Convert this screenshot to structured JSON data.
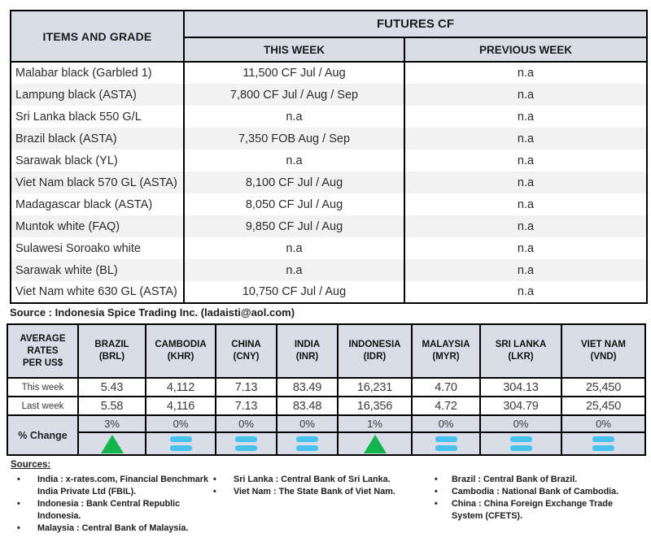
{
  "futures_table": {
    "col1_header": "ITEMS AND GRADE",
    "group_header": "FUTURES CF",
    "subheaders": [
      "THIS WEEK",
      "PREVIOUS WEEK"
    ],
    "rows": [
      {
        "item": "Malabar black (Garbled 1)",
        "this_week": "11,500 CF Jul / Aug",
        "previous_week": "n.a"
      },
      {
        "item": "Lampung black (ASTA)",
        "this_week": "7,800 CF Jul / Aug / Sep",
        "previous_week": "n.a"
      },
      {
        "item": "Sri Lanka black 550 G/L",
        "this_week": "n.a",
        "previous_week": "n.a"
      },
      {
        "item": "Brazil black (ASTA)",
        "this_week": "7,350 FOB Aug / Sep",
        "previous_week": "n.a"
      },
      {
        "item": "Sarawak black (YL)",
        "this_week": "n.a",
        "previous_week": "n.a"
      },
      {
        "item": "Viet Nam black 570 GL (ASTA)",
        "this_week": "8,100 CF Jul / Aug",
        "previous_week": "n.a"
      },
      {
        "item": "Madagascar black (ASTA)",
        "this_week": "8,050 CF Jul / Aug",
        "previous_week": "n.a"
      },
      {
        "item": "Muntok white (FAQ)",
        "this_week": "9,850 CF Jul / Aug",
        "previous_week": "n.a"
      },
      {
        "item": "Sulawesi Soroako white",
        "this_week": "n.a",
        "previous_week": "n.a"
      },
      {
        "item": "Sarawak  white (BL)",
        "this_week": "n.a",
        "previous_week": "n.a"
      },
      {
        "item": "Viet Nam white 630 GL (ASTA)",
        "this_week": "10,750 CF Jul / Aug",
        "previous_week": "n.a"
      }
    ]
  },
  "source_line": "Source : Indonesia Spice Trading Inc. (ladaisti@aol.com)",
  "rates_table": {
    "row_header": "AVERAGE\nRATES\nPER US$",
    "columns": [
      {
        "country": "BRAZIL",
        "code": "(BRL)"
      },
      {
        "country": "CAMBODIA",
        "code": "(KHR)"
      },
      {
        "country": "CHINA",
        "code": "(CNY)"
      },
      {
        "country": "INDIA",
        "code": "(INR)"
      },
      {
        "country": "INDONESIA",
        "code": "(IDR)"
      },
      {
        "country": "MALAYSIA",
        "code": "(MYR)"
      },
      {
        "country": "SRI LANKA",
        "code": "(LKR)"
      },
      {
        "country": "VIET NAM",
        "code": "(VND)"
      }
    ],
    "row_labels": {
      "this_week": "This week",
      "last_week": "Last week",
      "pct_change": "% Change"
    },
    "this_week": [
      "5.43",
      "4,112",
      "7.13",
      "83.49",
      "16,231",
      "4.70",
      "304.13",
      "25,450"
    ],
    "last_week": [
      "5.58",
      "4,116",
      "7.13",
      "83.48",
      "16,356",
      "4.72",
      "304.79",
      "25,450"
    ],
    "pct_change": [
      "3%",
      "0%",
      "0%",
      "0%",
      "1%",
      "0%",
      "0%",
      "0%"
    ],
    "trend": [
      "up",
      "equal",
      "equal",
      "equal",
      "up",
      "equal",
      "equal",
      "equal"
    ]
  },
  "sources": {
    "title": "Sources:",
    "bullet": "•",
    "columns": [
      {
        "items": [
          "India : x-rates.com, Financial Benchmark India Private Ltd (FBIL).",
          "Indonesia : Bank Central Republic Indonesia.",
          "Malaysia : Central Bank of Malaysia."
        ]
      },
      {
        "items": [
          "Sri Lanka : Central Bank of Sri Lanka.",
          "Viet Nam : The State Bank of Viet Nam."
        ]
      },
      {
        "items": [
          "Brazil :  Central Bank of Brazil.",
          "Cambodia : National Bank of Cambodia.",
          "China : China Foreign Exchange Trade System (CFETS)."
        ]
      }
    ]
  },
  "colors": {
    "header_bg": "#d8dde7",
    "alt_row_bg": "#f2f2f2",
    "up_green": "#12b54c",
    "equal_blue": "#47c2f0"
  }
}
